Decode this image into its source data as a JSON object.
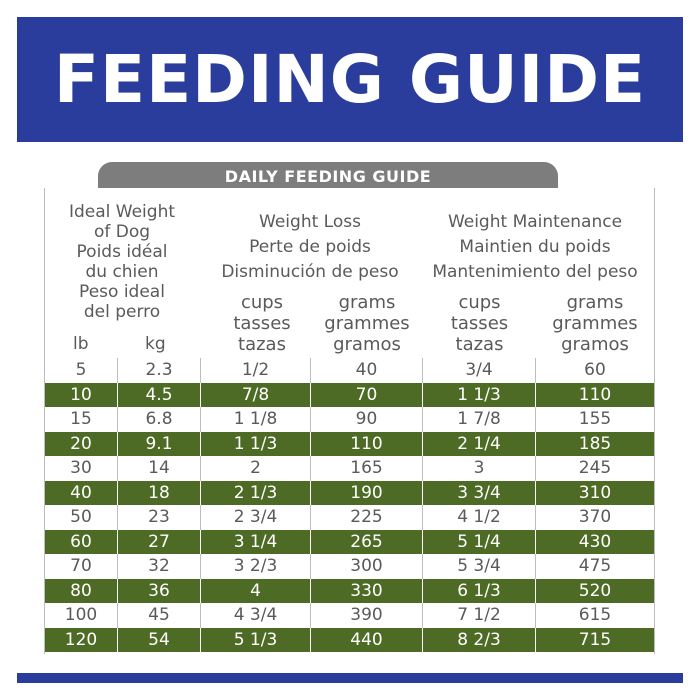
{
  "banner": {
    "title": "FEEDING GUIDE"
  },
  "tab": {
    "label": "DAILY FEEDING GUIDE"
  },
  "header": {
    "ideal_weight": [
      "Ideal Weight",
      "of Dog",
      "Poids idéal",
      "du chien",
      "Peso ideal",
      "del perro"
    ],
    "weight_loss": [
      "Weight Loss",
      "Perte de poids",
      "Disminución de peso"
    ],
    "weight_maintenance": [
      "Weight Maintenance",
      "Maintien du poids",
      "Mantenimiento del peso"
    ],
    "lb": "lb",
    "kg": "kg",
    "cups": [
      "cups",
      "tasses",
      "tazas"
    ],
    "grams": [
      "grams",
      "grammes",
      "gramos"
    ]
  },
  "rows": [
    [
      "5",
      "2.3",
      "1/2",
      "40",
      "3/4",
      "60"
    ],
    [
      "10",
      "4.5",
      "7/8",
      "70",
      "1 1/3",
      "110"
    ],
    [
      "15",
      "6.8",
      "1 1/8",
      "90",
      "1 7/8",
      "155"
    ],
    [
      "20",
      "9.1",
      "1 1/3",
      "110",
      "2 1/4",
      "185"
    ],
    [
      "30",
      "14",
      "2",
      "165",
      "3",
      "245"
    ],
    [
      "40",
      "18",
      "2 1/3",
      "190",
      "3 3/4",
      "310"
    ],
    [
      "50",
      "23",
      "2 3/4",
      "225",
      "4 1/2",
      "370"
    ],
    [
      "60",
      "27",
      "3 1/4",
      "265",
      "5 1/4",
      "430"
    ],
    [
      "70",
      "32",
      "3 2/3",
      "300",
      "5 3/4",
      "475"
    ],
    [
      "80",
      "36",
      "4",
      "330",
      "6 1/3",
      "520"
    ],
    [
      "100",
      "45",
      "4 3/4",
      "390",
      "7 1/2",
      "615"
    ],
    [
      "120",
      "54",
      "5 1/3",
      "440",
      "8 2/3",
      "715"
    ]
  ],
  "colors": {
    "banner": "#2a3d9c",
    "green_row": "#4e6b26",
    "tab": "#7d7d7d"
  }
}
